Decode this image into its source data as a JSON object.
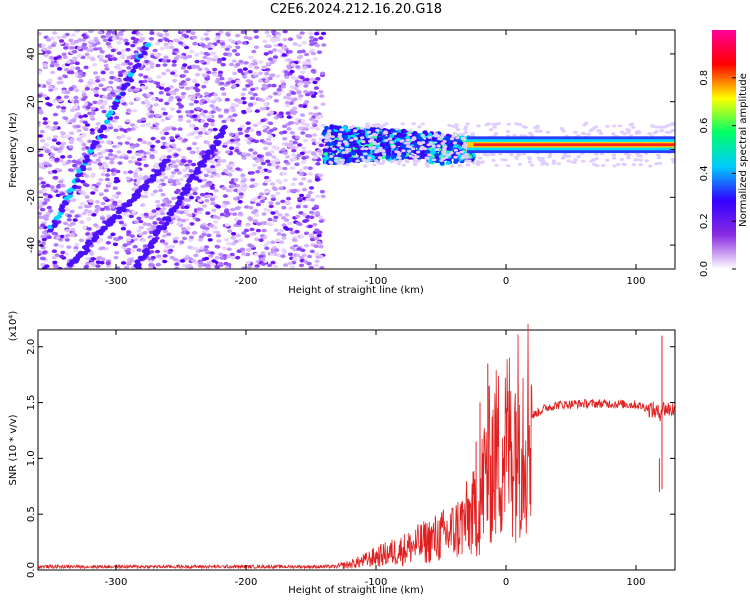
{
  "title": "C2E6.2024.212.16.20.G18",
  "chart_data": [
    {
      "type": "heatmap",
      "xlabel": "Height of straight line (km)",
      "ylabel": "Frequency (Hz)",
      "xlim": [
        -360,
        130
      ],
      "ylim": [
        -50,
        50
      ],
      "xticks": [
        -300,
        -200,
        -100,
        0,
        100
      ],
      "yticks": [
        -40,
        -20,
        0,
        20,
        40
      ],
      "colorbar": {
        "label": "Normalized spectral amplitude",
        "range": [
          0,
          1
        ],
        "ticks": [
          "0.0",
          "0.2",
          "0.4",
          "0.6",
          "0.8"
        ],
        "colors": [
          "#ffffff",
          "#8a2be2",
          "#3300ff",
          "#00ccff",
          "#00ff66",
          "#ffff00",
          "#ff0000",
          "#ff0099"
        ]
      },
      "features": {
        "noise_region_x": [
          -360,
          -140
        ],
        "signal_band_x": [
          -140,
          130
        ],
        "ridges": [
          {
            "x": [
              -350,
              -275
            ],
            "y": [
              -33,
              45
            ]
          },
          {
            "x": [
              -335,
              -260
            ],
            "y": [
              -48,
              -5
            ]
          },
          {
            "x": [
              -285,
              -215
            ],
            "y": [
              -50,
              10
            ]
          }
        ],
        "carrier_line_y": 2
      }
    },
    {
      "type": "line",
      "xlabel": "Height of straight line (km)",
      "ylabel": "SNR (10 * v/v)",
      "yscale_note": "(x10⁴)",
      "xlim": [
        -360,
        130
      ],
      "ylim": [
        0,
        2.15
      ],
      "xticks": [
        -300,
        -200,
        -100,
        0,
        100
      ],
      "yticks": [
        "0.0",
        "0.5",
        "1.0",
        "1.5",
        "2.0"
      ],
      "series": [
        {
          "color": "#e02020",
          "x": [
            -360,
            -200,
            -130,
            -120,
            -110,
            -100,
            -90,
            -80,
            -70,
            -60,
            -50,
            -40,
            -35,
            -30,
            -25,
            -20,
            -18,
            -16,
            -14,
            -10,
            -5,
            0,
            10,
            20,
            30,
            40,
            60,
            80,
            100,
            110,
            115,
            118,
            120,
            125,
            130
          ],
          "y": [
            0.03,
            0.03,
            0.03,
            0.05,
            0.08,
            0.12,
            0.15,
            0.18,
            0.22,
            0.26,
            0.3,
            0.35,
            0.4,
            0.45,
            0.5,
            0.55,
            0.75,
            0.85,
            0.9,
            1.0,
            1.05,
            1.12,
            1.25,
            1.38,
            1.45,
            1.48,
            1.49,
            1.49,
            1.48,
            1.45,
            1.42,
            1.4,
            1.45,
            1.44,
            1.44
          ]
        }
      ],
      "spikes": [
        {
          "x": -23,
          "y": 1.15
        },
        {
          "x": -20,
          "y": 1.5
        },
        {
          "x": -14,
          "y": 1.85
        },
        {
          "x": 118,
          "y": 1.0
        },
        {
          "x": 120,
          "y": 2.1
        }
      ]
    }
  ]
}
